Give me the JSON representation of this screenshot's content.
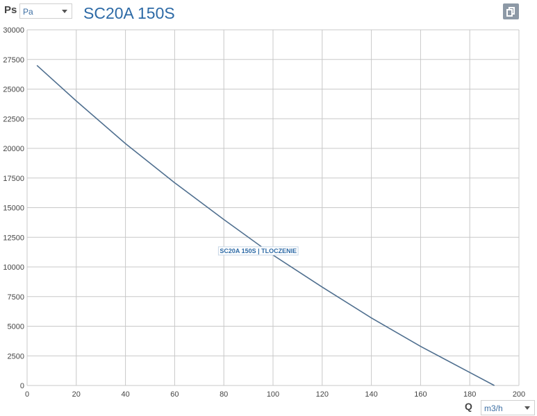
{
  "header": {
    "y_axis_symbol": "Ps",
    "y_unit_select": {
      "value": "Pa"
    },
    "title": "SC20A 150S"
  },
  "footer": {
    "x_axis_symbol": "Q",
    "x_unit_select": {
      "value": "m3/h"
    }
  },
  "icons": {
    "copy": "copy-icon",
    "dropdown": "chevron-down-icon"
  },
  "colors": {
    "title": "#2d6aa6",
    "curve": "#4f6f8f",
    "grid": "#c8c8c8",
    "button": "#8d99a6"
  },
  "chart_data": {
    "type": "line",
    "xlim": [
      0,
      200
    ],
    "ylim": [
      0,
      30000
    ],
    "x_ticks": [
      0,
      20,
      40,
      60,
      80,
      100,
      120,
      140,
      160,
      180,
      200
    ],
    "y_ticks": [
      0,
      2500,
      5000,
      7500,
      10000,
      12500,
      15000,
      17500,
      20000,
      22500,
      25000,
      27500,
      30000
    ],
    "grid": true,
    "series": [
      {
        "name": "SC20A 150S | TLOCZENIE",
        "color": "#4f6f8f",
        "points": [
          [
            4,
            27000
          ],
          [
            20,
            24000
          ],
          [
            40,
            20400
          ],
          [
            60,
            17100
          ],
          [
            80,
            14000
          ],
          [
            100,
            11000
          ],
          [
            120,
            8300
          ],
          [
            140,
            5700
          ],
          [
            160,
            3300
          ],
          [
            180,
            1100
          ],
          [
            190,
            0
          ]
        ]
      }
    ]
  }
}
